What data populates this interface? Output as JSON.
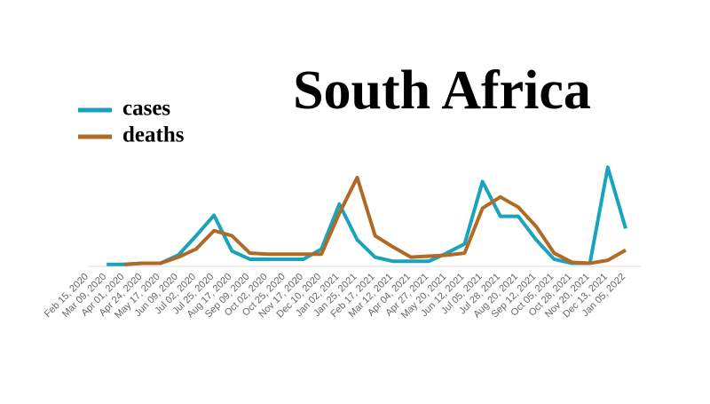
{
  "chart_data": {
    "type": "line",
    "title": "South Africa",
    "categories": [
      "Feb 15, 2020",
      "Mar 09, 2020",
      "Apr 01, 2020",
      "Apr 24, 2020",
      "May 17, 2020",
      "Jun 09, 2020",
      "Jul 02, 2020",
      "Jul 25, 2020",
      "Aug 17, 2020",
      "Sep 09, 2020",
      "Oct 02, 2020",
      "Oct 25, 2020",
      "Nov 17, 2020",
      "Dec 10, 2020",
      "Jan 02, 2021",
      "Jan 25, 2021",
      "Feb 17, 2021",
      "Mar 12, 2021",
      "Apr 04, 2021",
      "Apr 27, 2021",
      "May 20, 2021",
      "Jun 12, 2021",
      "Jul 05, 2021",
      "Jul 28, 2021",
      "Aug 20, 2021",
      "Sep 12, 2021",
      "Oct 05, 2021",
      "Oct 28, 2021",
      "Nov 20, 2021",
      "Dec 13, 2021",
      "Jan 05, 2022"
    ],
    "series": [
      {
        "name": "cases",
        "color": "#1aa3bd",
        "values": [
          null,
          2,
          2,
          3,
          3,
          11,
          30,
          50,
          15,
          7,
          7,
          7,
          7,
          17,
          61,
          26,
          9,
          5,
          5,
          5,
          13,
          22,
          83,
          49,
          49,
          26,
          7,
          3,
          3,
          97,
          37
        ]
      },
      {
        "name": "deaths",
        "color": "#b06a25",
        "values": [
          null,
          null,
          2,
          3,
          3,
          9,
          17,
          35,
          30,
          13,
          12,
          12,
          12,
          12,
          52,
          87,
          30,
          19,
          9,
          10,
          11,
          13,
          57,
          68,
          58,
          39,
          13,
          4,
          3,
          6,
          16
        ]
      }
    ],
    "ylim": [
      0,
      100
    ],
    "legend": "top-left"
  }
}
